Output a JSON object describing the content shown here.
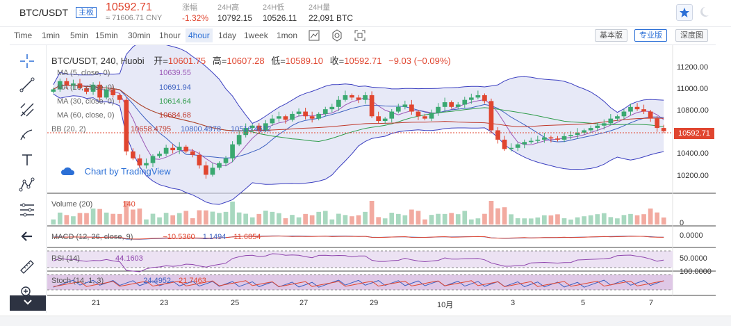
{
  "header": {
    "pair": "BTC/USDT",
    "badge": "主板",
    "price": "10592.71",
    "cny": "≈ 71606.71 CNY",
    "stats": [
      {
        "label": "涨幅",
        "value": "-1.32%"
      },
      {
        "label": "24H高",
        "value": "10792.15"
      },
      {
        "label": "24H低",
        "value": "10526.11"
      },
      {
        "label": "24H量",
        "value": "22,091 BTC"
      }
    ]
  },
  "toolbar": {
    "intervals": [
      "Time",
      "1min",
      "5min",
      "15min",
      "30min",
      "1hour",
      "4hour",
      "1day",
      "1week",
      "1mon"
    ],
    "active_interval": "4hour",
    "views": [
      "基本版",
      "专业版",
      "深度图"
    ],
    "active_view": "专业版"
  },
  "legend": {
    "symbol": "BTC/USDT, 240, Huobi",
    "open_label": "开=",
    "open": "10601.75",
    "high_label": "高=",
    "high": "10607.28",
    "low_label": "低=",
    "low": "10589.10",
    "close_label": "收=",
    "close": "10592.71",
    "change": "−9.03 (−0.09%)",
    "indicators": [
      {
        "name": "MA (5, close, 0)",
        "value": "10639.55",
        "color": "#9b59b6"
      },
      {
        "name": "MA (10, close, 0)",
        "value": "10691.94",
        "color": "#3b5fc0"
      },
      {
        "name": "MA (30, close, 0)",
        "value": "10614.64",
        "color": "#2e9c4a"
      },
      {
        "name": "MA (60, close, 0)",
        "value": "10684.68",
        "color": "#c0392b"
      }
    ],
    "bb": {
      "name": "BB (20, 2)",
      "basis": "10658.4795",
      "upper": "10800.4978",
      "lower": "10516.4612"
    },
    "watermark": "Chart by TradingView"
  },
  "price_axis": {
    "ticks": [
      "11200.00",
      "11000.00",
      "10800.00",
      "10600.00",
      "10400.00",
      "10200.00"
    ],
    "current": "10592.71",
    "ylim": [
      10080,
      11280
    ]
  },
  "volume": {
    "label": "Volume (20)",
    "value": "140",
    "axis_tick": "0"
  },
  "macd": {
    "label": "MACD (12, 26, close, 9)",
    "v1": "−10.5360",
    "v2": "1.1494",
    "v3": "11.6854",
    "axis_tick": "0.0000"
  },
  "rsi": {
    "label": "RSI (14)",
    "value": "44.1603",
    "axis_tick": "50.0000"
  },
  "stoch": {
    "label": "Stoch (14, 1, 3)",
    "v1": "24.4952",
    "v2": "21.7463",
    "axis_tick": "100.0000"
  },
  "xaxis": {
    "labels": [
      "21",
      "23",
      "25",
      "27",
      "29",
      "10月",
      "3",
      "5",
      "7"
    ]
  },
  "colors": {
    "up": "#3aa870",
    "down": "#e0452f",
    "accent": "#2b6fd6"
  },
  "chart_data": {
    "type": "candlestick",
    "closes": [
      10950,
      11020,
      10980,
      11000,
      10960,
      10930,
      10990,
      10880,
      10950,
      10900,
      10860,
      10420,
      10360,
      10300,
      10320,
      10380,
      10400,
      10450,
      10430,
      10460,
      10420,
      10390,
      10300,
      10220,
      10280,
      10320,
      10360,
      10480,
      10560,
      10620,
      10640,
      10600,
      10660,
      10700,
      10720,
      10690,
      10740,
      10760,
      10720,
      10700,
      10740,
      10780,
      10800,
      10860,
      10900,
      10880,
      10860,
      10900,
      10720,
      10680,
      10700,
      10760,
      10800,
      10820,
      10760,
      10720,
      10700,
      10750,
      10800,
      10840,
      10800,
      10820,
      10860,
      10880,
      10900,
      10850,
      10600,
      10520,
      10440,
      10450,
      10480,
      10500,
      10510,
      10520,
      10540,
      10530,
      10520,
      10550,
      10560,
      10580,
      10600,
      10620,
      10640,
      10660,
      10700,
      10720,
      10760,
      10800,
      10780,
      10760,
      10700,
      10620,
      10592
    ]
  }
}
